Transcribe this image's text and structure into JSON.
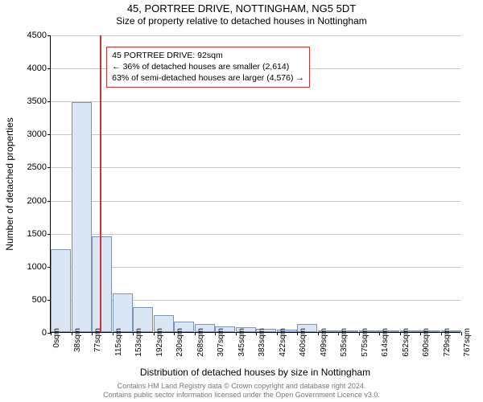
{
  "title": "45, PORTREE DRIVE, NOTTINGHAM, NG5 5DT",
  "subtitle": "Size of property relative to detached houses in Nottingham",
  "ylabel": "Number of detached properties",
  "xlabel": "Distribution of detached houses by size in Nottingham",
  "chart": {
    "type": "histogram",
    "ylim": [
      0,
      4500
    ],
    "yticks": [
      0,
      500,
      1000,
      1500,
      2000,
      2500,
      3000,
      3500,
      4000,
      4500
    ],
    "xticks": [
      "0sqm",
      "38sqm",
      "77sqm",
      "115sqm",
      "153sqm",
      "192sqm",
      "230sqm",
      "268sqm",
      "307sqm",
      "345sqm",
      "383sqm",
      "422sqm",
      "460sqm",
      "499sqm",
      "535sqm",
      "575sqm",
      "614sqm",
      "652sqm",
      "690sqm",
      "729sqm",
      "767sqm"
    ],
    "bars": [
      1250,
      3480,
      1450,
      580,
      380,
      250,
      160,
      120,
      90,
      70,
      50,
      40,
      120,
      30,
      20,
      15,
      15,
      10,
      10,
      10
    ],
    "bar_fill": "#dbe6f5",
    "bar_stroke": "#7a94bb",
    "grid_color": "#c6c6c6",
    "background": "#ffffff",
    "marker_x_sqm": 92,
    "marker_color": "#cc3333",
    "callout_border": "#cc3333",
    "callout_bg": "#ffffff"
  },
  "callout": {
    "line1": "45 PORTREE DRIVE: 92sqm",
    "line2": "← 36% of detached houses are smaller (2,614)",
    "line3": "63% of semi-detached houses are larger (4,576) →"
  },
  "footer": {
    "line1": "Contains HM Land Registry data © Crown copyright and database right 2024.",
    "line2": "Contains public sector information licensed under the Open Government Licence v3.0."
  }
}
